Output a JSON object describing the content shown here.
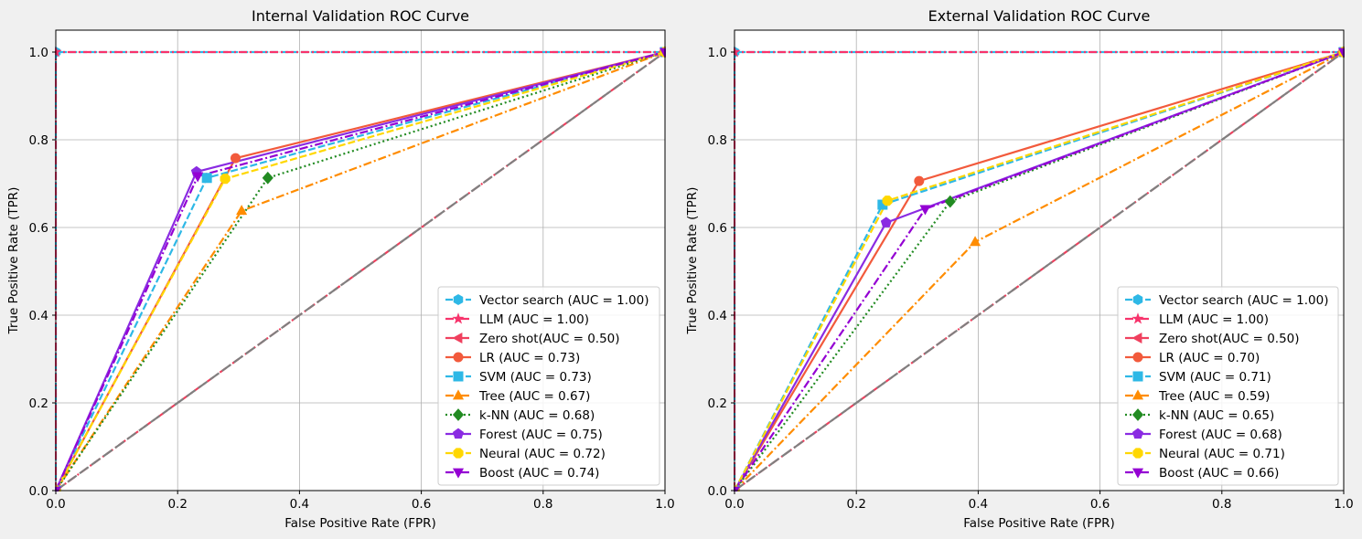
{
  "chart_data": [
    {
      "type": "line",
      "title": "Internal Validation ROC Curve",
      "xlabel": "False Positive Rate (FPR)",
      "ylabel": "True Positive Rate (TPR)",
      "xlim": [
        0,
        1
      ],
      "ylim": [
        0,
        1.05
      ],
      "xticks": [
        "0.0",
        "0.2",
        "0.4",
        "0.6",
        "0.8",
        "1.0"
      ],
      "yticks": [
        "0.0",
        "0.2",
        "0.4",
        "0.6",
        "0.8",
        "1.0"
      ],
      "grid": true,
      "legend_position": "lower right",
      "series": [
        {
          "name": "Vector search (AUC = 1.00)",
          "color": "#2eb8e6",
          "dash": "dash",
          "marker": "hexagon",
          "x": [
            0,
            0,
            1
          ],
          "y": [
            0,
            1,
            1
          ]
        },
        {
          "name": "LLM (AUC = 1.00)",
          "color": "#f7336b",
          "dash": "dashdot",
          "marker": "star",
          "x": [
            0,
            0,
            1
          ],
          "y": [
            0,
            1,
            1
          ]
        },
        {
          "name": "Zero shot(AUC = 0.50)",
          "color": "#f0405e",
          "dash": "dashdot",
          "marker": "triangle-left",
          "x": [
            0,
            1
          ],
          "y": [
            0,
            1
          ]
        },
        {
          "name": "LR (AUC = 0.73)",
          "color": "#f25a3c",
          "dash": "solid",
          "marker": "circle",
          "x": [
            0,
            0.295,
            1
          ],
          "y": [
            0,
            0.758,
            1
          ]
        },
        {
          "name": "SVM (AUC = 0.73)",
          "color": "#2eb8e6",
          "dash": "dash",
          "marker": "square",
          "x": [
            0,
            0.248,
            1
          ],
          "y": [
            0,
            0.713,
            1
          ]
        },
        {
          "name": "Tree (AUC = 0.67)",
          "color": "#ff8c00",
          "dash": "dashdot",
          "marker": "triangle-up",
          "x": [
            0,
            0.305,
            1
          ],
          "y": [
            0,
            0.638,
            1
          ]
        },
        {
          "name": "k-NN (AUC = 0.68)",
          "color": "#228b22",
          "dash": "dot",
          "marker": "diamond",
          "x": [
            0,
            0.348,
            1
          ],
          "y": [
            0,
            0.713,
            1
          ]
        },
        {
          "name": "Forest (AUC = 0.75)",
          "color": "#8a2be2",
          "dash": "solid",
          "marker": "pentagon",
          "x": [
            0,
            0.231,
            1
          ],
          "y": [
            0,
            0.727,
            1
          ]
        },
        {
          "name": "Neural (AUC = 0.72)",
          "color": "#ffd700",
          "dash": "dash",
          "marker": "octagon",
          "x": [
            0,
            0.278,
            1
          ],
          "y": [
            0,
            0.711,
            1
          ]
        },
        {
          "name": "Boost (AUC = 0.74)",
          "color": "#9400d3",
          "dash": "dashdot",
          "marker": "triangle-down",
          "x": [
            0,
            0.233,
            1
          ],
          "y": [
            0,
            0.717,
            1
          ]
        },
        {
          "color": "#808080",
          "dash": "longdash",
          "marker": "none",
          "x": [
            0,
            1
          ],
          "y": [
            0,
            1
          ]
        }
      ]
    },
    {
      "type": "line",
      "title": "External Validation ROC Curve",
      "xlabel": "False Positive Rate (FPR)",
      "ylabel": "True Positive Rate (TPR)",
      "xlim": [
        0,
        1
      ],
      "ylim": [
        0,
        1.05
      ],
      "xticks": [
        "0.0",
        "0.2",
        "0.4",
        "0.6",
        "0.8",
        "1.0"
      ],
      "yticks": [
        "0.0",
        "0.2",
        "0.4",
        "0.6",
        "0.8",
        "1.0"
      ],
      "grid": true,
      "legend_position": "lower right",
      "series": [
        {
          "name": "Vector search (AUC = 1.00)",
          "color": "#2eb8e6",
          "dash": "dash",
          "marker": "hexagon",
          "x": [
            0,
            0,
            1
          ],
          "y": [
            0,
            1,
            1
          ]
        },
        {
          "name": "LLM (AUC = 1.00)",
          "color": "#f7336b",
          "dash": "dashdot",
          "marker": "star",
          "x": [
            0,
            0,
            1
          ],
          "y": [
            0,
            1,
            1
          ]
        },
        {
          "name": "Zero shot(AUC = 0.50)",
          "color": "#f0405e",
          "dash": "dashdot",
          "marker": "triangle-left",
          "x": [
            0,
            1
          ],
          "y": [
            0,
            1
          ]
        },
        {
          "name": "LR (AUC = 0.70)",
          "color": "#f25a3c",
          "dash": "solid",
          "marker": "circle",
          "x": [
            0,
            0.303,
            1
          ],
          "y": [
            0,
            0.706,
            1
          ]
        },
        {
          "name": "SVM (AUC = 0.71)",
          "color": "#2eb8e6",
          "dash": "dash",
          "marker": "square",
          "x": [
            0,
            0.243,
            1
          ],
          "y": [
            0,
            0.652,
            1
          ]
        },
        {
          "name": "Tree (AUC = 0.59)",
          "color": "#ff8c00",
          "dash": "dashdot",
          "marker": "triangle-up",
          "x": [
            0,
            0.395,
            1
          ],
          "y": [
            0,
            0.567,
            1
          ]
        },
        {
          "name": "k-NN (AUC = 0.65)",
          "color": "#228b22",
          "dash": "dot",
          "marker": "diamond",
          "x": [
            0,
            0.354,
            1
          ],
          "y": [
            0,
            0.659,
            1
          ]
        },
        {
          "name": "Forest (AUC = 0.68)",
          "color": "#8a2be2",
          "dash": "solid",
          "marker": "pentagon",
          "x": [
            0,
            0.249,
            1
          ],
          "y": [
            0,
            0.611,
            1
          ]
        },
        {
          "name": "Neural (AUC = 0.71)",
          "color": "#ffd700",
          "dash": "dash",
          "marker": "octagon",
          "x": [
            0,
            0.251,
            1
          ],
          "y": [
            0,
            0.661,
            1
          ]
        },
        {
          "name": "Boost (AUC = 0.66)",
          "color": "#9400d3",
          "dash": "dashdot",
          "marker": "triangle-down",
          "x": [
            0,
            0.313,
            1
          ],
          "y": [
            0,
            0.642,
            1
          ]
        },
        {
          "color": "#808080",
          "dash": "longdash",
          "marker": "none",
          "x": [
            0,
            1
          ],
          "y": [
            0,
            1
          ]
        }
      ]
    }
  ]
}
